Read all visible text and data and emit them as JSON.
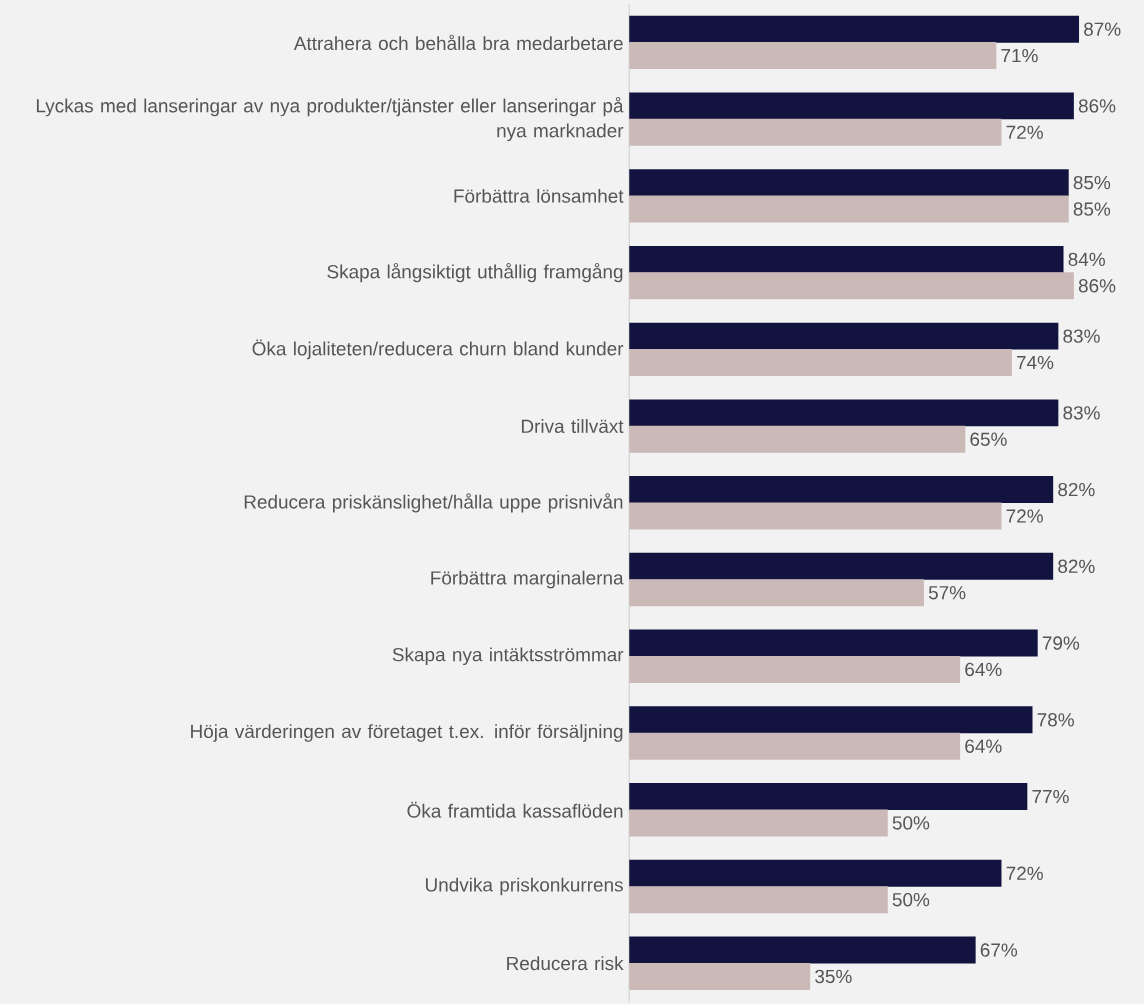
{
  "chart_data": {
    "type": "bar",
    "orientation": "horizontal",
    "data_labels": true,
    "categories": [
      "Attrahera och behålla bra medarbetare",
      "Lyckas med lanseringar av nya produkter/tjänster eller lanseringar på nya marknader",
      "Förbättra lönsamhet",
      "Skapa långsiktigt uthållig framgång",
      "Öka lojaliteten/reducera churn bland kunder",
      "Driva tillväxt",
      "Reducera priskänslighet/hålla uppe prisnivån",
      "Förbättra marginalerna",
      "Skapa nya intäktsströmmar",
      "Höja värderingen av företaget t.ex. inför försäljning",
      "Öka framtida kassaflöden",
      "Undvika priskonkurrens",
      "Reducera risk"
    ],
    "series": [
      {
        "color": "#13133f",
        "values": [
          87,
          86,
          85,
          84,
          83,
          83,
          82,
          82,
          79,
          78,
          77,
          72,
          67
        ],
        "value_labels": [
          "87%",
          "86%",
          "85%",
          "84%",
          "83%",
          "83%",
          "82%",
          "82%",
          "79%",
          "78%",
          "77%",
          "72%",
          "67%"
        ]
      },
      {
        "color": "#cbb9b8",
        "values": [
          71,
          72,
          85,
          86,
          74,
          65,
          72,
          57,
          64,
          64,
          50,
          50,
          35
        ],
        "value_labels": [
          "71%",
          "72%",
          "85%",
          "86%",
          "74%",
          "65%",
          "72%",
          "57%",
          "64%",
          "64%",
          "50%",
          "50%",
          "35%"
        ]
      }
    ]
  }
}
